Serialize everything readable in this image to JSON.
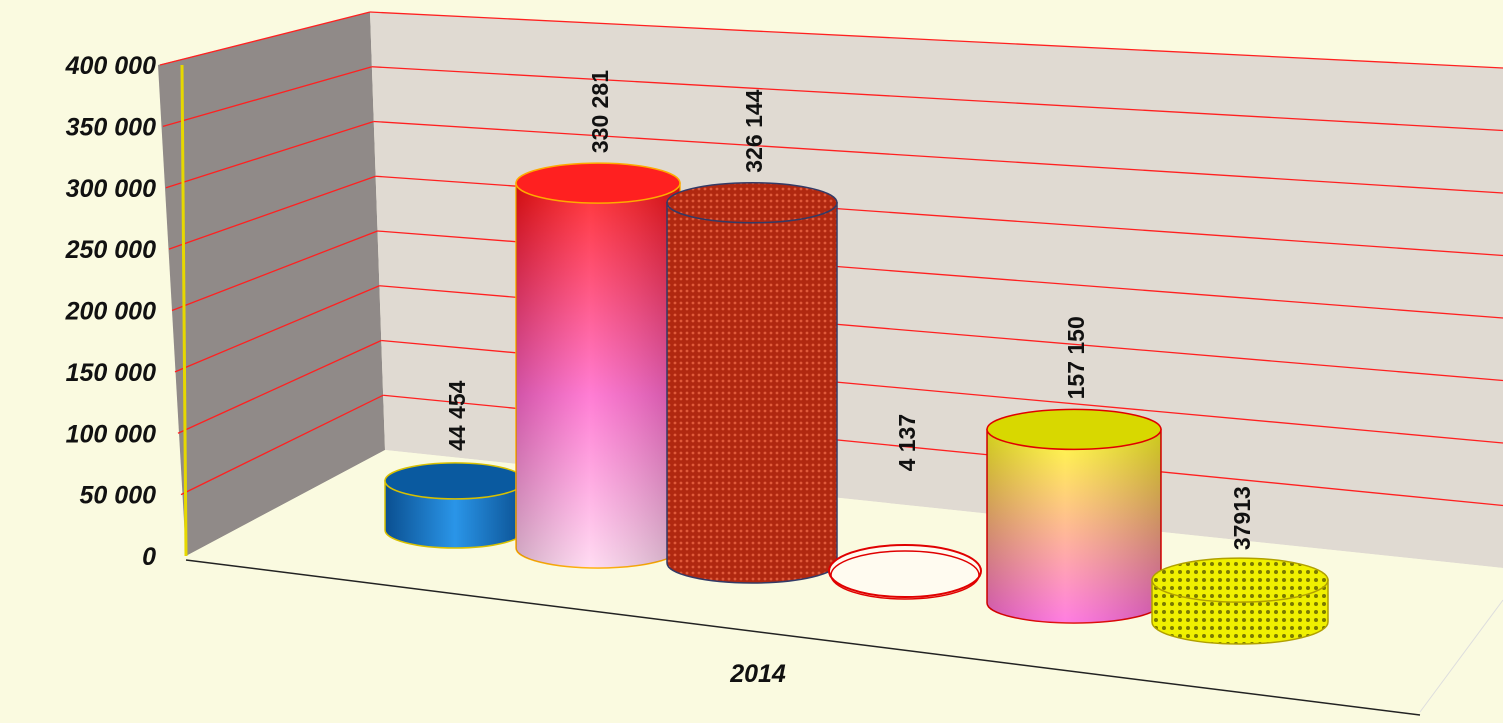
{
  "chart_data": {
    "type": "bar",
    "style": "3d-cylinder",
    "categories": [
      "2014"
    ],
    "series": [
      {
        "values": [
          44454
        ],
        "label": "44 454",
        "color": "#1a7fd0"
      },
      {
        "values": [
          330281
        ],
        "label": "330 281",
        "color": "#ff1a1a"
      },
      {
        "values": [
          326144
        ],
        "label": "326 144",
        "color": "#b83a16"
      },
      {
        "values": [
          4137
        ],
        "label": "4 137",
        "color": "#ffffff"
      },
      {
        "values": [
          157150
        ],
        "label": "157 150",
        "color": "#ffff33"
      },
      {
        "values": [
          37913
        ],
        "label": "37913",
        "color": "#e6e600"
      }
    ],
    "ylim": [
      0,
      400000
    ],
    "ytick_labels": [
      "0",
      "50 000",
      "100 000",
      "150 000",
      "200 000",
      "250 000",
      "300 000",
      "350 000",
      "400 000"
    ],
    "grid": true,
    "grid_color": "#ff2020",
    "background_color": "#fafae0",
    "wall_color": "#e0dad2",
    "side_wall_color": "#908a88",
    "legend": "none"
  }
}
